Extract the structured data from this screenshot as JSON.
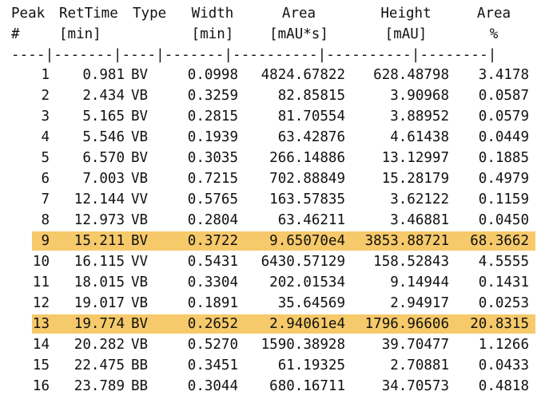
{
  "columns": [
    {
      "key": "peak",
      "header1": "Peak",
      "header2": "#"
    },
    {
      "key": "rettime",
      "header1": "RetTime",
      "header2": "[min]"
    },
    {
      "key": "type",
      "header1": "Type",
      "header2": ""
    },
    {
      "key": "width",
      "header1": "Width",
      "header2": "[min]"
    },
    {
      "key": "area",
      "header1": "Area",
      "header2": "[mAU*s]"
    },
    {
      "key": "height",
      "header1": "Height",
      "header2": "[mAU]"
    },
    {
      "key": "areapct",
      "header1": "Area",
      "header2": "%"
    }
  ],
  "separator": "----|-------|----|-------|----------|----------|--------|",
  "rows": [
    {
      "peak": "1",
      "rettime": "0.981",
      "type": "BV",
      "width": "0.0998",
      "area": "4824.67822",
      "height": "628.48798",
      "areapct": "3.4178",
      "highlight": false
    },
    {
      "peak": "2",
      "rettime": "2.434",
      "type": "VB",
      "width": "0.3259",
      "area": "82.85815",
      "height": "3.90968",
      "areapct": "0.0587",
      "highlight": false
    },
    {
      "peak": "3",
      "rettime": "5.165",
      "type": "BV",
      "width": "0.2815",
      "area": "81.70554",
      "height": "3.88952",
      "areapct": "0.0579",
      "highlight": false
    },
    {
      "peak": "4",
      "rettime": "5.546",
      "type": "VB",
      "width": "0.1939",
      "area": "63.42876",
      "height": "4.61438",
      "areapct": "0.0449",
      "highlight": false
    },
    {
      "peak": "5",
      "rettime": "6.570",
      "type": "BV",
      "width": "0.3035",
      "area": "266.14886",
      "height": "13.12997",
      "areapct": "0.1885",
      "highlight": false
    },
    {
      "peak": "6",
      "rettime": "7.003",
      "type": "VB",
      "width": "0.7215",
      "area": "702.88849",
      "height": "15.28179",
      "areapct": "0.4979",
      "highlight": false
    },
    {
      "peak": "7",
      "rettime": "12.144",
      "type": "VV",
      "width": "0.5765",
      "area": "163.57835",
      "height": "3.62122",
      "areapct": "0.1159",
      "highlight": false
    },
    {
      "peak": "8",
      "rettime": "12.973",
      "type": "VB",
      "width": "0.2804",
      "area": "63.46211",
      "height": "3.46881",
      "areapct": "0.0450",
      "highlight": false
    },
    {
      "peak": "9",
      "rettime": "15.211",
      "type": "BV",
      "width": "0.3722",
      "area": "9.65070e4",
      "height": "3853.88721",
      "areapct": "68.3662",
      "highlight": true
    },
    {
      "peak": "10",
      "rettime": "16.115",
      "type": "VV",
      "width": "0.5431",
      "area": "6430.57129",
      "height": "158.52843",
      "areapct": "4.5555",
      "highlight": false
    },
    {
      "peak": "11",
      "rettime": "18.015",
      "type": "VB",
      "width": "0.3304",
      "area": "202.01534",
      "height": "9.14944",
      "areapct": "0.1431",
      "highlight": false
    },
    {
      "peak": "12",
      "rettime": "19.017",
      "type": "VB",
      "width": "0.1891",
      "area": "35.64569",
      "height": "2.94917",
      "areapct": "0.0253",
      "highlight": false
    },
    {
      "peak": "13",
      "rettime": "19.774",
      "type": "BV",
      "width": "0.2652",
      "area": "2.94061e4",
      "height": "1796.96606",
      "areapct": "20.8315",
      "highlight": true
    },
    {
      "peak": "14",
      "rettime": "20.282",
      "type": "VB",
      "width": "0.5270",
      "area": "1590.38928",
      "height": "39.70477",
      "areapct": "1.1266",
      "highlight": false
    },
    {
      "peak": "15",
      "rettime": "22.475",
      "type": "BB",
      "width": "0.3451",
      "area": "61.19325",
      "height": "2.70881",
      "areapct": "0.0433",
      "highlight": false
    },
    {
      "peak": "16",
      "rettime": "23.789",
      "type": "BB",
      "width": "0.3044",
      "area": "680.16711",
      "height": "34.70573",
      "areapct": "0.4818",
      "highlight": false
    }
  ],
  "colors": {
    "highlight": "#f6c96a",
    "text": "#111111",
    "background": "#ffffff"
  }
}
